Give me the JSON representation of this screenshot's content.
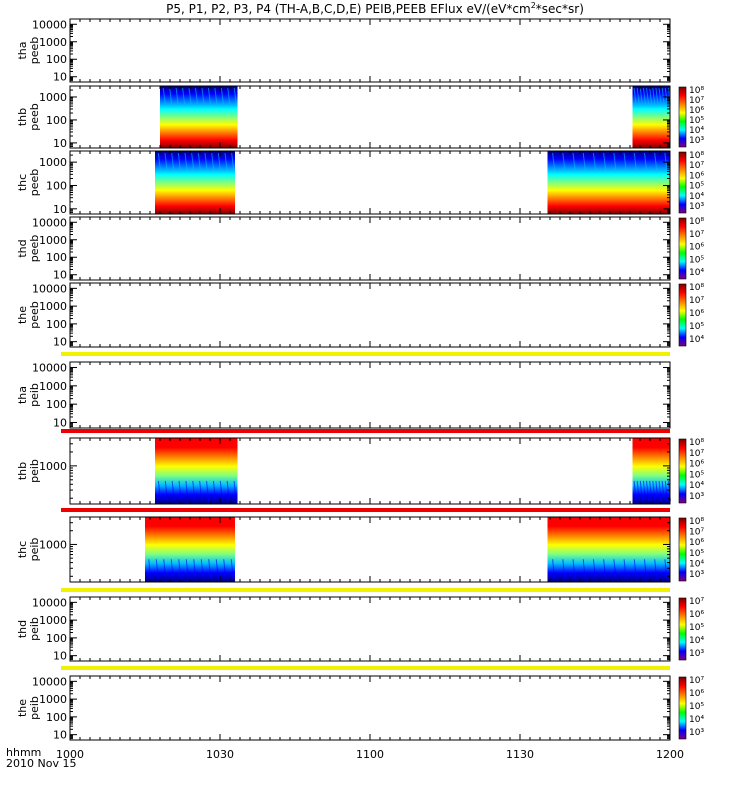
{
  "title_parts": {
    "pre": "P5, P1, P2, P3, P4 (TH-A,B,C,D,E) PEIB,PEEB EFlux eV/(eV*cm",
    "sup": "2",
    "post": "*sec*sr)"
  },
  "time_axis": {
    "ticks": [
      "1000",
      "1030",
      "1100",
      "1130",
      "1200"
    ],
    "label": "hhmm",
    "date": "2010 Nov 15",
    "range_minutes": [
      0,
      120
    ]
  },
  "colors": {
    "yellow_bar": "#f2f200",
    "red_bar": "#ee0000"
  },
  "chart_data": {
    "type": "heatmap",
    "description_units": "x in minutes after 10:00 UT; energy in eV; log10 EFlux on colorbars",
    "panels": [
      {
        "id": "tha_peeb",
        "label": "tha",
        "sublabel": "peeb",
        "yscale": "log",
        "yrange": [
          5,
          20000
        ],
        "yticks": [
          "10",
          "100",
          "1000",
          "10000"
        ],
        "spectra": [],
        "colorbar": null
      },
      {
        "id": "thb_peeb",
        "label": "thb",
        "sublabel": "peeb",
        "yscale": "log",
        "yrange": [
          6,
          3000
        ],
        "yticks": [
          "10",
          "100",
          "1000"
        ],
        "spectra": [
          {
            "x": [
              18,
              33.5
            ]
          },
          {
            "x": [
              112.5,
              120
            ]
          }
        ],
        "colorbar": {
          "labels": [
            "10⁸",
            "10⁷",
            "10⁶",
            "10⁵",
            "10⁴",
            "10³"
          ]
        }
      },
      {
        "id": "thc_peeb",
        "label": "thc",
        "sublabel": "peeb",
        "yscale": "log",
        "yrange": [
          6,
          3000
        ],
        "yticks": [
          "10",
          "100",
          "1000"
        ],
        "spectra": [
          {
            "x": [
              17,
              33
            ]
          },
          {
            "x": [
              95.5,
              120
            ]
          }
        ],
        "colorbar": {
          "labels": [
            "10⁸",
            "10⁷",
            "10⁶",
            "10⁵",
            "10⁴",
            "10³"
          ]
        }
      },
      {
        "id": "thd_peeb",
        "label": "thd",
        "sublabel": "peeb",
        "yscale": "log",
        "yrange": [
          5,
          20000
        ],
        "yticks": [
          "10",
          "100",
          "1000",
          "10000"
        ],
        "spectra": [],
        "colorbar": {
          "labels": [
            "10⁸",
            "10⁷",
            "10⁶",
            "10⁵",
            "10⁴"
          ]
        }
      },
      {
        "id": "the_peeb",
        "label": "the",
        "sublabel": "peeb",
        "yscale": "log",
        "yrange": [
          5,
          20000
        ],
        "yticks": [
          "10",
          "100",
          "1000",
          "10000"
        ],
        "spectra": [],
        "colorbar": {
          "labels": [
            "10⁸",
            "10⁷",
            "10⁶",
            "10⁵",
            "10⁴"
          ]
        }
      },
      {
        "id": "tha_peib",
        "label": "tha",
        "sublabel": "peib",
        "yscale": "log",
        "yrange": [
          5,
          20000
        ],
        "yticks": [
          "10",
          "100",
          "1000",
          "10000"
        ],
        "spectra": [],
        "colorbar": null,
        "top_bar": "yellow"
      },
      {
        "id": "thb_peib",
        "label": "thb",
        "sublabel": "peib",
        "yscale": "log",
        "yrange": [
          150,
          4000
        ],
        "yticks": [
          "1000"
        ],
        "spectra": [
          {
            "x": [
              17,
              33.5
            ]
          },
          {
            "x": [
              112.5,
              120
            ]
          }
        ],
        "colorbar": {
          "labels": [
            "10⁸",
            "10⁷",
            "10⁶",
            "10⁵",
            "10⁴",
            "10³"
          ]
        },
        "top_bar": "red"
      },
      {
        "id": "thc_peib",
        "label": "thc",
        "sublabel": "peib",
        "yscale": "log",
        "yrange": [
          150,
          4000
        ],
        "yticks": [
          "1000"
        ],
        "spectra": [
          {
            "x": [
              15,
              33
            ]
          },
          {
            "x": [
              95.5,
              120
            ]
          }
        ],
        "colorbar": {
          "labels": [
            "10⁸",
            "10⁷",
            "10⁶",
            "10⁵",
            "10⁴",
            "10³"
          ]
        },
        "top_bar": "red"
      },
      {
        "id": "thd_peib",
        "label": "thd",
        "sublabel": "peib",
        "yscale": "log",
        "yrange": [
          5,
          20000
        ],
        "yticks": [
          "10",
          "100",
          "1000",
          "10000"
        ],
        "spectra": [],
        "colorbar": {
          "labels": [
            "10⁷",
            "10⁶",
            "10⁵",
            "10⁴",
            "10³"
          ]
        },
        "top_bar": "yellow"
      },
      {
        "id": "the_peib",
        "label": "the",
        "sublabel": "peib",
        "yscale": "log",
        "yrange": [
          5,
          20000
        ],
        "yticks": [
          "10",
          "100",
          "1000",
          "10000"
        ],
        "spectra": [],
        "colorbar": {
          "labels": [
            "10⁷",
            "10⁶",
            "10⁵",
            "10⁴",
            "10³"
          ]
        },
        "top_bar": "yellow"
      }
    ]
  }
}
